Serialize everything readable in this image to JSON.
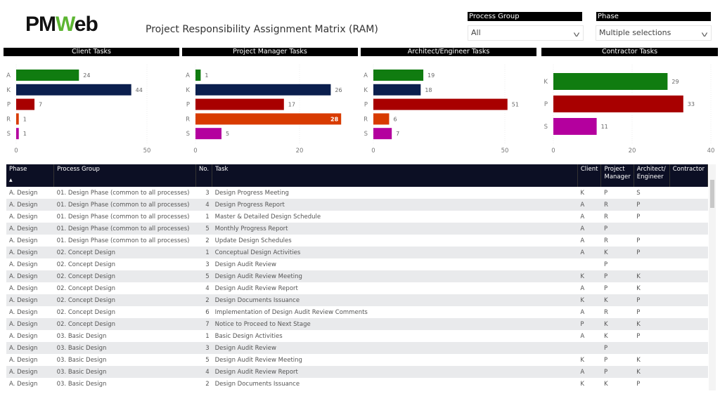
{
  "header": {
    "logo_text": "PMWeb",
    "title": "Project Responsibility Assignment Matrix (RAM)"
  },
  "filters": {
    "process_group": {
      "label": "Process Group",
      "value": "All"
    },
    "phase": {
      "label": "Phase",
      "value": "Multiple selections"
    }
  },
  "colors": {
    "A": "#107c10",
    "K": "#0b1f4e",
    "P": "#a80000",
    "R": "#d83b01",
    "S": "#b4009e"
  },
  "chart_data": [
    {
      "type": "bar",
      "title": "Client Tasks",
      "categories": [
        "A",
        "K",
        "P",
        "R",
        "S"
      ],
      "values": [
        24,
        44,
        7,
        1,
        1
      ],
      "xlim": [
        0,
        55
      ],
      "ticks": [
        0,
        50
      ]
    },
    {
      "type": "bar",
      "title": "Project Manager Tasks",
      "categories": [
        "A",
        "K",
        "P",
        "R",
        "S"
      ],
      "values": [
        1,
        26,
        17,
        28,
        5
      ],
      "xlim": [
        0,
        29
      ],
      "ticks": [
        0,
        20
      ]
    },
    {
      "type": "bar",
      "title": "Architect/Engineer Tasks",
      "categories": [
        "A",
        "K",
        "P",
        "R",
        "S"
      ],
      "values": [
        19,
        18,
        51,
        6,
        7
      ],
      "xlim": [
        0,
        56
      ],
      "ticks": [
        0,
        50
      ]
    },
    {
      "type": "bar",
      "title": "Contractor Tasks",
      "categories": [
        "K",
        "P",
        "S"
      ],
      "values": [
        29,
        33,
        11
      ],
      "bar_colors": [
        "#107c10",
        "#a80000",
        "#b4009e"
      ],
      "xlim": [
        0,
        40
      ],
      "ticks": [
        0,
        20,
        40
      ]
    }
  ],
  "table": {
    "columns": [
      "Phase",
      "Process Group",
      "No.",
      "Task",
      "Client",
      "Project Manager",
      "Architect/ Engineer",
      "Contractor"
    ],
    "sort_indicator": "▲",
    "rows": [
      [
        "A. Design",
        "01. Design Phase (common to all processes)",
        "3",
        "Design Progress Meeting",
        "K",
        "P",
        "S",
        ""
      ],
      [
        "A. Design",
        "01. Design Phase (common to all processes)",
        "4",
        "Design Progress Report",
        "A",
        "R",
        "P",
        ""
      ],
      [
        "A. Design",
        "01. Design Phase (common to all processes)",
        "1",
        "Master & Detailed Design Schedule",
        "A",
        "R",
        "P",
        ""
      ],
      [
        "A. Design",
        "01. Design Phase (common to all processes)",
        "5",
        "Monthly Progress Report",
        "A",
        "P",
        "",
        ""
      ],
      [
        "A. Design",
        "01. Design Phase (common to all processes)",
        "2",
        "Update Design Schedules",
        "A",
        "R",
        "P",
        ""
      ],
      [
        "A. Design",
        "02. Concept Design",
        "1",
        "Conceptual Design Activities",
        "A",
        "K",
        "P",
        ""
      ],
      [
        "A. Design",
        "02. Concept Design",
        "3",
        "Design Audit Review",
        "",
        "P",
        "",
        ""
      ],
      [
        "A. Design",
        "02. Concept Design",
        "5",
        "Design Audit Review Meeting",
        "K",
        "P",
        "K",
        ""
      ],
      [
        "A. Design",
        "02. Concept Design",
        "4",
        "Design Audit Review Report",
        "A",
        "P",
        "K",
        ""
      ],
      [
        "A. Design",
        "02. Concept Design",
        "2",
        "Design Documents Issuance",
        "K",
        "K",
        "P",
        ""
      ],
      [
        "A. Design",
        "02. Concept Design",
        "6",
        "Implementation of Design Audit Review Comments",
        "A",
        "R",
        "P",
        ""
      ],
      [
        "A. Design",
        "02. Concept Design",
        "7",
        "Notice to Proceed to Next Stage",
        "P",
        "K",
        "K",
        ""
      ],
      [
        "A. Design",
        "03. Basic Design",
        "1",
        "Basic Design Activities",
        "A",
        "K",
        "P",
        ""
      ],
      [
        "A. Design",
        "03. Basic Design",
        "3",
        "Design Audit Review",
        "",
        "P",
        "",
        ""
      ],
      [
        "A. Design",
        "03. Basic Design",
        "5",
        "Design Audit Review Meeting",
        "K",
        "P",
        "K",
        ""
      ],
      [
        "A. Design",
        "03. Basic Design",
        "4",
        "Design Audit Review Report",
        "A",
        "P",
        "K",
        ""
      ],
      [
        "A. Design",
        "03. Basic Design",
        "2",
        "Design Documents Issuance",
        "K",
        "K",
        "P",
        ""
      ]
    ]
  }
}
